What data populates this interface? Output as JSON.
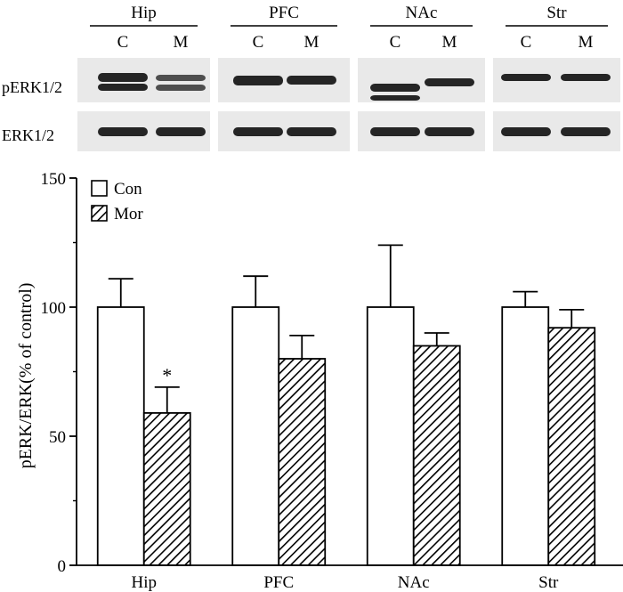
{
  "blot": {
    "tissues": [
      "Hip",
      "PFC",
      "NAc",
      "Str"
    ],
    "lane_labels": [
      "C",
      "M"
    ],
    "row_labels": [
      "pERK1/2",
      "ERK1/2"
    ]
  },
  "chart_data": {
    "type": "bar",
    "categories": [
      "Hip",
      "PFC",
      "NAc",
      "Str"
    ],
    "series": [
      {
        "name": "Con",
        "values": [
          100,
          100,
          100,
          100
        ],
        "errors": [
          11,
          12,
          24,
          6
        ],
        "fill": "open"
      },
      {
        "name": "Mor",
        "values": [
          59,
          80,
          85,
          92
        ],
        "errors": [
          10,
          9,
          5,
          7
        ],
        "fill": "hatched"
      }
    ],
    "ylabel": "pERK/ERK(% of control)",
    "xlabel": "",
    "ylim": [
      0,
      150
    ],
    "yticks": [
      0,
      50,
      100,
      150
    ],
    "annotations": [
      {
        "category": "Hip",
        "series": "Mor",
        "text": "*"
      }
    ],
    "legend_position": "top-left",
    "grid": false
  },
  "colors": {
    "axis": "#000000",
    "open_bar": "#ffffff",
    "hatch": "#000000",
    "blot_bg": "#e9e9e9",
    "band": "#1a1a1a"
  }
}
